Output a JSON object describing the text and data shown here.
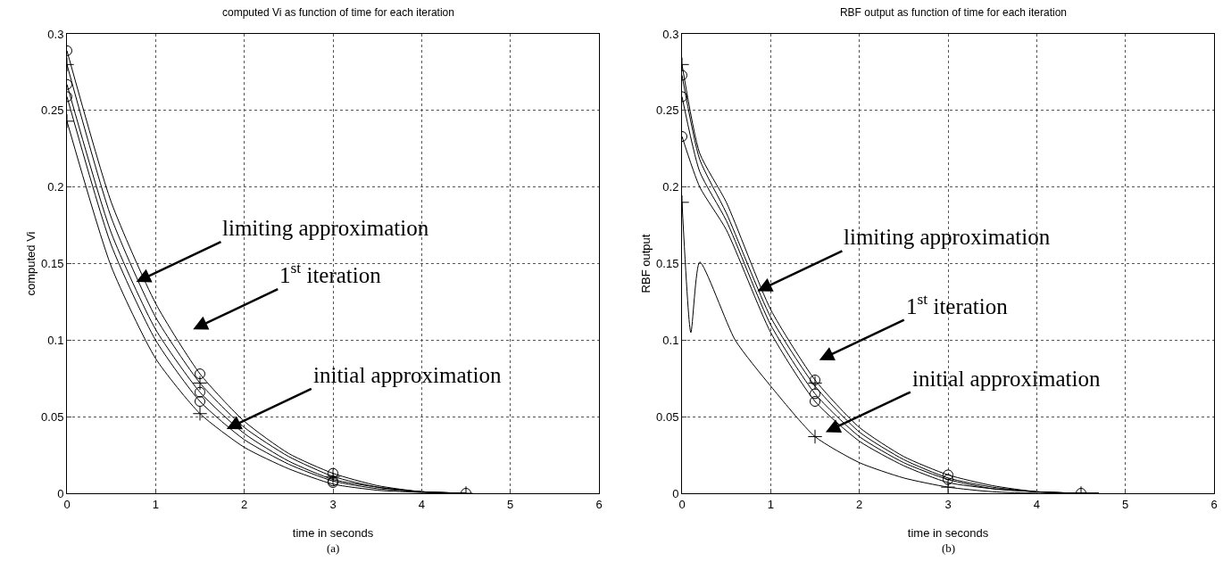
{
  "chart_data": [
    {
      "type": "line",
      "title": "computed Vi as function of time for each iteration",
      "xlabel": "time in seconds",
      "ylabel": "computed Vi",
      "xlim": [
        0,
        6
      ],
      "xticks": [
        0,
        1,
        2,
        3,
        4,
        5,
        6
      ],
      "ylim": [
        0,
        0.3
      ],
      "yticks": [
        0,
        0.05,
        0.1,
        0.15,
        0.2,
        0.25,
        0.3
      ],
      "grid": true,
      "line_style": "solid",
      "x": [
        0,
        0.5,
        1,
        1.5,
        2,
        2.5,
        3,
        3.5,
        4,
        4.5
      ],
      "series": [
        {
          "color": "#000000",
          "values": [
            0.289,
            0.19,
            0.124,
            0.078,
            0.047,
            0.026,
            0.013,
            0.005,
            0.001,
            0
          ]
        },
        {
          "color": "#000000",
          "values": [
            0.28,
            0.18,
            0.115,
            0.072,
            0.043,
            0.024,
            0.011,
            0.004,
            0.001,
            0
          ]
        },
        {
          "color": "#000000",
          "values": [
            0.267,
            0.17,
            0.107,
            0.066,
            0.039,
            0.021,
            0.009,
            0.004,
            0.001,
            0
          ]
        },
        {
          "color": "#000000",
          "values": [
            0.259,
            0.162,
            0.1,
            0.06,
            0.035,
            0.019,
            0.008,
            0.003,
            0.001,
            0
          ]
        },
        {
          "color": "#000000",
          "values": [
            0.243,
            0.148,
            0.088,
            0.052,
            0.03,
            0.016,
            0.006,
            0.002,
            0.0005,
            0
          ]
        },
        {
          "type": "scatter",
          "marker": "circle",
          "color": "#000000",
          "x": [
            0,
            0,
            0,
            1.5,
            1.5,
            1.5,
            3,
            3,
            3,
            4.5
          ],
          "values": [
            0.289,
            0.267,
            0.259,
            0.078,
            0.066,
            0.06,
            0.013,
            0.008,
            0.007,
            0
          ]
        },
        {
          "type": "scatter",
          "marker": "cross",
          "color": "#000000",
          "x": [
            0,
            0,
            1.5,
            1.5,
            3,
            4.5
          ],
          "values": [
            0.28,
            0.243,
            0.072,
            0.052,
            0.011,
            0
          ]
        }
      ],
      "annotations": [
        {
          "text": "limiting approximation",
          "x": 0.78,
          "y": 0.138
        },
        "1$^{st}$ iteration",
        {
          "text": "initial approximation",
          "x": 1.8,
          "y": 0.042
        },
        "(a)"
      ]
    },
    {
      "type": "line",
      "title": "RBF output as function of time for each iteration",
      "xlabel": "time in seconds",
      "ylabel": "RBF output",
      "xlim": [
        0,
        6
      ],
      "xticks": [
        0,
        1,
        2,
        3,
        4,
        5,
        6
      ],
      "ylim": [
        0,
        0.3
      ],
      "yticks": [
        0,
        0.05,
        0.1,
        0.15,
        0.2,
        0.25,
        0.3
      ],
      "grid": true,
      "line_style": "solid",
      "x": [
        0,
        0.2,
        0.5,
        1,
        1.5,
        2,
        2.5,
        3,
        3.5,
        4,
        4.5,
        4.7
      ],
      "series": [
        {
          "color": "#000000",
          "values": [
            0.28,
            0.222,
            0.19,
            0.12,
            0.074,
            0.043,
            0.024,
            0.012,
            0.005,
            0.001,
            0,
            0
          ]
        },
        {
          "color": "#000000",
          "values": [
            0.273,
            0.218,
            0.183,
            0.115,
            0.07,
            0.04,
            0.022,
            0.01,
            0.004,
            0.001,
            0,
            0
          ]
        },
        {
          "color": "#000000",
          "values": [
            0.259,
            0.21,
            0.178,
            0.11,
            0.065,
            0.037,
            0.02,
            0.009,
            0.003,
            0.001,
            0,
            0
          ]
        },
        {
          "color": "#000000",
          "values": [
            0.233,
            0.2,
            0.172,
            0.105,
            0.06,
            0.034,
            0.018,
            0.007,
            0.003,
            0.001,
            0,
            0
          ]
        },
        {
          "color": "#000000",
          "x": [
            0,
            0.1,
            0.2,
            0.6,
            1,
            1.5,
            2,
            2.5,
            3,
            3.5,
            4,
            4.5
          ],
          "values": [
            0.19,
            0.105,
            0.151,
            0.1,
            0.07,
            0.037,
            0.02,
            0.01,
            0.004,
            0.001,
            0,
            0
          ]
        },
        {
          "type": "scatter",
          "marker": "circle",
          "color": "#000000",
          "x": [
            0,
            0,
            0,
            1.5,
            1.5,
            1.5,
            3,
            3,
            4.5
          ],
          "values": [
            0.273,
            0.259,
            0.233,
            0.074,
            0.065,
            0.06,
            0.012,
            0.009,
            0
          ]
        },
        {
          "type": "scatter",
          "marker": "cross",
          "color": "#000000",
          "x": [
            0,
            0,
            1.5,
            1.5,
            3,
            4.5
          ],
          "values": [
            0.28,
            0.19,
            0.072,
            0.037,
            0.004,
            0
          ]
        }
      ],
      "annotations": [
        {
          "text": "limiting approximation",
          "x": 0.85,
          "y": 0.132
        },
        "1$^{st}$ iteration",
        "initial approximation",
        "(b)"
      ]
    }
  ]
}
